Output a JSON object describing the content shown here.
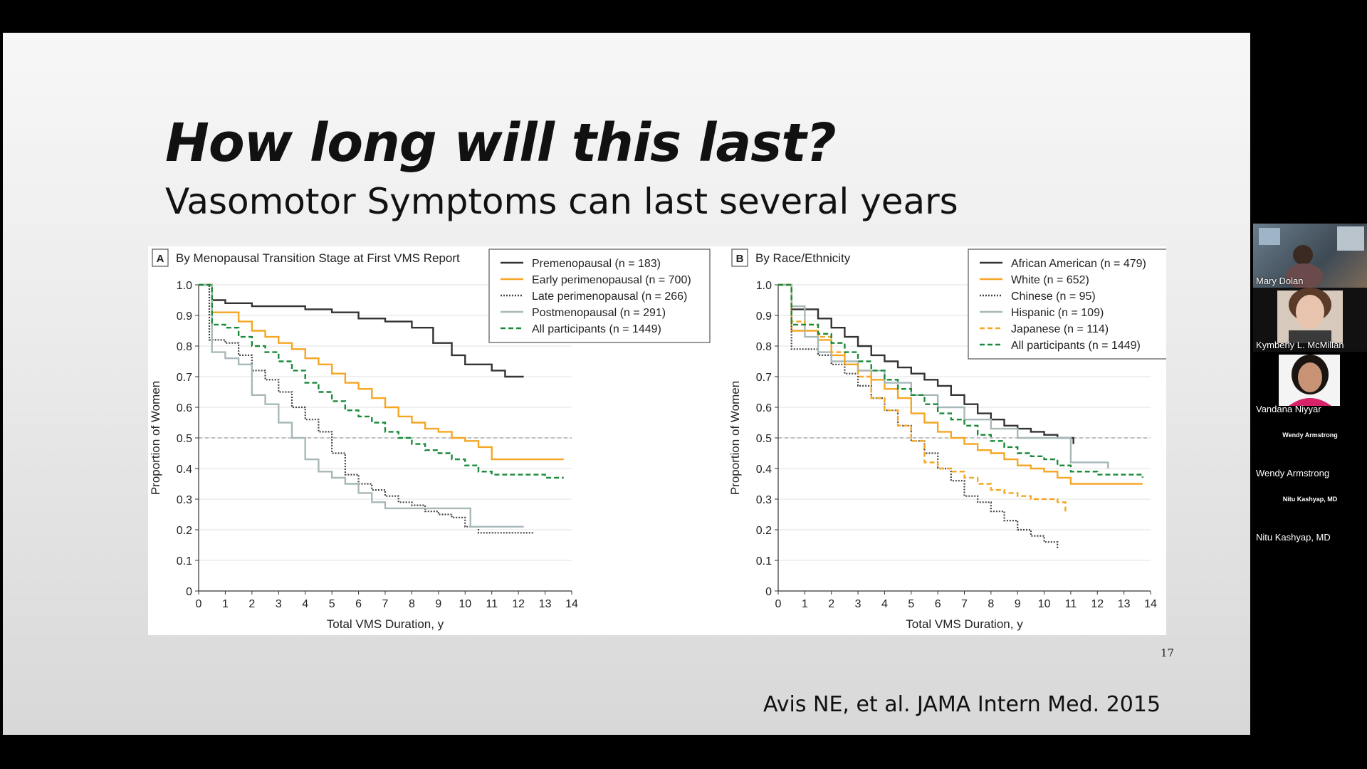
{
  "slide": {
    "title": "How long will this last?",
    "subtitle": "Vasomotor Symptoms can last several years",
    "slide_number": "17",
    "citation": "Avis NE, et al. JAMA Intern Med. 2015"
  },
  "participants": [
    {
      "name": "Mary Dolan",
      "video": true
    },
    {
      "name": "Kymberly L. McMillan",
      "video": true
    },
    {
      "name": "Vandana Niyyar",
      "video": true
    },
    {
      "name": "Wendy Armstrong",
      "video": false,
      "center_label": "Wendy Armstrong"
    },
    {
      "name": "Nitu Kashyap, MD",
      "video": false,
      "center_label": "Nitu Kashyap, MD"
    }
  ],
  "chart_data": [
    {
      "type": "line",
      "panel": "A",
      "title": "By Menopausal Transition Stage at First VMS Report",
      "xlabel": "Total VMS Duration, y",
      "ylabel": "Proportion of Women",
      "xlim": [
        0,
        14
      ],
      "ylim": [
        0,
        1.0
      ],
      "xticks": [
        "0",
        "1",
        "2",
        "3",
        "4",
        "5",
        "6",
        "7",
        "8",
        "9",
        "10",
        "11",
        "12",
        "13",
        "14"
      ],
      "yticks": [
        "0",
        "0.1",
        "0.2",
        "0.3",
        "0.4",
        "0.5",
        "0.6",
        "0.7",
        "0.8",
        "0.9",
        "1.0"
      ],
      "reference_line": 0.5,
      "legend_position": "top-right",
      "series": [
        {
          "name": "Premenopausal (n = 183)",
          "color": "#333333",
          "dash": "solid",
          "x": [
            0,
            0.5,
            1,
            2,
            3,
            4,
            5,
            6,
            7,
            8,
            8.8,
            9.5,
            10,
            11,
            11.5,
            12.2
          ],
          "y": [
            1.0,
            0.95,
            0.94,
            0.93,
            0.93,
            0.92,
            0.91,
            0.89,
            0.88,
            0.86,
            0.81,
            0.77,
            0.74,
            0.72,
            0.7,
            0.7
          ]
        },
        {
          "name": "Early perimenopausal (n = 700)",
          "color": "#f5a623",
          "dash": "solid",
          "x": [
            0,
            0.5,
            1,
            1.5,
            2,
            2.5,
            3,
            3.5,
            4,
            4.5,
            5,
            5.5,
            6,
            6.5,
            7,
            7.5,
            8,
            8.5,
            9,
            9.5,
            10,
            10.5,
            11,
            12,
            13,
            13.7
          ],
          "y": [
            1.0,
            0.91,
            0.91,
            0.88,
            0.85,
            0.83,
            0.81,
            0.79,
            0.76,
            0.74,
            0.71,
            0.68,
            0.66,
            0.63,
            0.6,
            0.57,
            0.55,
            0.53,
            0.52,
            0.5,
            0.49,
            0.47,
            0.43,
            0.43,
            0.43,
            0.43
          ]
        },
        {
          "name": "Late perimenopausal (n = 266)",
          "color": "#444444",
          "dash": "dotted",
          "x": [
            0,
            0.4,
            1,
            1.5,
            2,
            2.5,
            3,
            3.5,
            4,
            4.5,
            5,
            5.5,
            6,
            6.5,
            7,
            7.5,
            8,
            8.5,
            9,
            9.5,
            10,
            10.5,
            11,
            12,
            12.6
          ],
          "y": [
            1.0,
            0.82,
            0.81,
            0.77,
            0.72,
            0.69,
            0.65,
            0.6,
            0.56,
            0.52,
            0.45,
            0.38,
            0.35,
            0.33,
            0.31,
            0.29,
            0.28,
            0.26,
            0.25,
            0.24,
            0.21,
            0.19,
            0.19,
            0.19,
            0.19
          ]
        },
        {
          "name": "Postmenopausal (n = 291)",
          "color": "#a8b8b8",
          "dash": "solid",
          "x": [
            0,
            0.5,
            1,
            1.5,
            2,
            2.5,
            3,
            3.5,
            4,
            4.5,
            5,
            5.5,
            6,
            6.5,
            7,
            7.5,
            8,
            9,
            10,
            10.2,
            11,
            12.2
          ],
          "y": [
            1.0,
            0.78,
            0.76,
            0.74,
            0.64,
            0.61,
            0.55,
            0.5,
            0.43,
            0.39,
            0.37,
            0.35,
            0.32,
            0.29,
            0.27,
            0.27,
            0.27,
            0.27,
            0.27,
            0.21,
            0.21,
            0.21
          ]
        },
        {
          "name": "All participants (n = 1449)",
          "color": "#1a8a3a",
          "dash": "dashed",
          "x": [
            0,
            0.5,
            1,
            1.5,
            2,
            2.5,
            3,
            3.5,
            4,
            4.5,
            5,
            5.5,
            6,
            6.5,
            7,
            7.5,
            8,
            8.5,
            9,
            9.5,
            10,
            10.5,
            11,
            12,
            13,
            13.7
          ],
          "y": [
            1.0,
            0.87,
            0.86,
            0.83,
            0.8,
            0.78,
            0.75,
            0.72,
            0.68,
            0.65,
            0.62,
            0.59,
            0.57,
            0.55,
            0.52,
            0.5,
            0.48,
            0.46,
            0.45,
            0.43,
            0.41,
            0.39,
            0.38,
            0.38,
            0.37,
            0.37
          ]
        }
      ]
    },
    {
      "type": "line",
      "panel": "B",
      "title": "By Race/Ethnicity",
      "xlabel": "Total VMS Duration, y",
      "ylabel": "Proportion of Women",
      "xlim": [
        0,
        14
      ],
      "ylim": [
        0,
        1.0
      ],
      "xticks": [
        "0",
        "1",
        "2",
        "3",
        "4",
        "5",
        "6",
        "7",
        "8",
        "9",
        "10",
        "11",
        "12",
        "13",
        "14"
      ],
      "yticks": [
        "0",
        "0.1",
        "0.2",
        "0.3",
        "0.4",
        "0.5",
        "0.6",
        "0.7",
        "0.8",
        "0.9",
        "1.0"
      ],
      "reference_line": 0.5,
      "legend_position": "top-right",
      "series": [
        {
          "name": "African American (n = 479)",
          "color": "#333333",
          "dash": "solid",
          "x": [
            0,
            0.5,
            1,
            1.5,
            2,
            2.5,
            3,
            3.5,
            4,
            4.5,
            5,
            5.5,
            6,
            6.5,
            7,
            7.5,
            8,
            8.5,
            9,
            9.5,
            10,
            10.5,
            11.1
          ],
          "y": [
            1.0,
            0.92,
            0.92,
            0.89,
            0.86,
            0.83,
            0.8,
            0.77,
            0.75,
            0.73,
            0.71,
            0.69,
            0.67,
            0.64,
            0.61,
            0.58,
            0.56,
            0.54,
            0.53,
            0.52,
            0.51,
            0.5,
            0.48
          ]
        },
        {
          "name": "White (n = 652)",
          "color": "#f5a623",
          "dash": "solid",
          "x": [
            0,
            0.5,
            1,
            1.5,
            2,
            2.5,
            3,
            3.5,
            4,
            4.5,
            5,
            5.5,
            6,
            6.5,
            7,
            7.5,
            8,
            8.5,
            9,
            9.5,
            10,
            10.5,
            11,
            12,
            13,
            13.7
          ],
          "y": [
            1.0,
            0.85,
            0.85,
            0.82,
            0.77,
            0.74,
            0.72,
            0.69,
            0.66,
            0.63,
            0.58,
            0.55,
            0.52,
            0.5,
            0.48,
            0.46,
            0.45,
            0.43,
            0.41,
            0.4,
            0.39,
            0.37,
            0.35,
            0.35,
            0.35,
            0.35
          ]
        },
        {
          "name": "Chinese (n = 95)",
          "color": "#444444",
          "dash": "dotted",
          "x": [
            0,
            0.5,
            1,
            1.5,
            2,
            2.5,
            3,
            3.5,
            4,
            4.5,
            5,
            5.5,
            6,
            6.5,
            7,
            7.5,
            8,
            8.5,
            9,
            9.5,
            10,
            10.5
          ],
          "y": [
            1.0,
            0.79,
            0.79,
            0.77,
            0.74,
            0.71,
            0.67,
            0.63,
            0.59,
            0.54,
            0.49,
            0.45,
            0.4,
            0.36,
            0.31,
            0.29,
            0.26,
            0.23,
            0.2,
            0.18,
            0.16,
            0.14
          ]
        },
        {
          "name": "Hispanic (n = 109)",
          "color": "#a8b8b8",
          "dash": "solid",
          "x": [
            0,
            0.5,
            1,
            1.5,
            2,
            3,
            4,
            5,
            6,
            7,
            8,
            9,
            10,
            10.5,
            11,
            11.5,
            12,
            12.4
          ],
          "y": [
            1.0,
            0.93,
            0.83,
            0.78,
            0.75,
            0.72,
            0.68,
            0.64,
            0.6,
            0.56,
            0.53,
            0.5,
            0.5,
            0.5,
            0.42,
            0.42,
            0.42,
            0.4
          ]
        },
        {
          "name": "Japanese (n = 114)",
          "color": "#f5a623",
          "dash": "dashed",
          "x": [
            0,
            0.5,
            1,
            1.5,
            2,
            2.5,
            3,
            3.5,
            4,
            4.5,
            5,
            5.5,
            6,
            6.5,
            7,
            7.5,
            8,
            8.5,
            9,
            9.5,
            10,
            10.5,
            10.8
          ],
          "y": [
            1.0,
            0.88,
            0.87,
            0.83,
            0.78,
            0.74,
            0.7,
            0.63,
            0.59,
            0.54,
            0.49,
            0.42,
            0.4,
            0.39,
            0.37,
            0.35,
            0.33,
            0.32,
            0.31,
            0.3,
            0.3,
            0.29,
            0.26
          ]
        },
        {
          "name": "All participants (n = 1449)",
          "color": "#1a8a3a",
          "dash": "dashed",
          "x": [
            0,
            0.5,
            1,
            1.5,
            2,
            2.5,
            3,
            3.5,
            4,
            4.5,
            5,
            5.5,
            6,
            6.5,
            7,
            7.5,
            8,
            8.5,
            9,
            9.5,
            10,
            10.5,
            11,
            12,
            13,
            13.7
          ],
          "y": [
            1.0,
            0.87,
            0.87,
            0.84,
            0.81,
            0.78,
            0.75,
            0.72,
            0.69,
            0.66,
            0.64,
            0.61,
            0.58,
            0.56,
            0.54,
            0.51,
            0.49,
            0.47,
            0.45,
            0.44,
            0.43,
            0.41,
            0.39,
            0.38,
            0.38,
            0.37
          ]
        }
      ]
    }
  ]
}
